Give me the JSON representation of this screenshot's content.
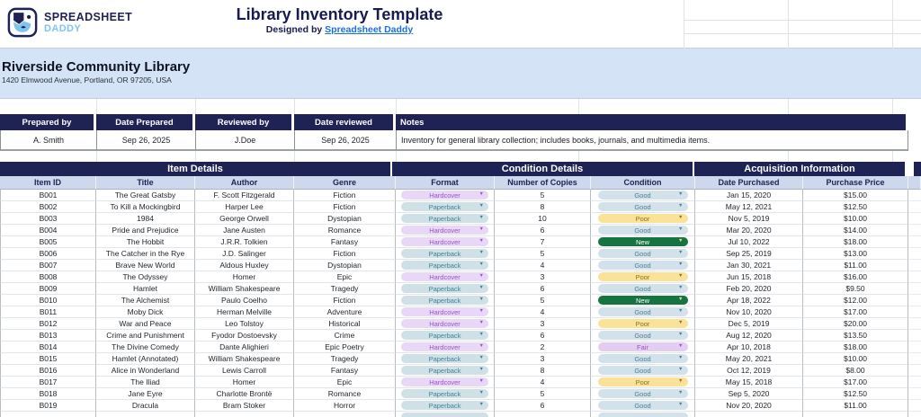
{
  "header": {
    "logo_line1": "SPREADSHEET",
    "logo_line2": "DADDY",
    "title": "Library Inventory Template",
    "subtitle_prefix": "Designed by",
    "subtitle_link": "Spreadsheet Daddy"
  },
  "library": {
    "name": "Riverside Community Library",
    "address": "1420 Elmwood Avenue, Portland, OR 97205, USA"
  },
  "prep": {
    "headers": [
      "Prepared by",
      "Date Prepared",
      "Reviewed by",
      "Date reviewed",
      "Notes"
    ],
    "values": [
      "A. Smith",
      "Sep 26, 2025",
      "J.Doe",
      "Sep 26, 2025",
      "Inventory for general library collection; includes books, journals, and multimedia items."
    ]
  },
  "main_table": {
    "groups": [
      {
        "label": "Item Details",
        "span": 4
      },
      {
        "label": "Condition Details",
        "span": 3
      },
      {
        "label": "Acquisition Information",
        "span": 2
      }
    ],
    "columns": [
      "Item ID",
      "Title",
      "Author",
      "Genre",
      "Format",
      "Number of Copies",
      "Condition",
      "Date Purchased",
      "Purchase Price"
    ],
    "rows": [
      {
        "id": "B001",
        "title": "The Great Gatsby",
        "author": "F. Scott Fitzgerald",
        "genre": "Fiction",
        "format": "Hardcover",
        "copies": "5",
        "condition": "Good",
        "date": "Jan 15, 2020",
        "price": "$15.00"
      },
      {
        "id": "B002",
        "title": "To Kill a Mockingbird",
        "author": "Harper Lee",
        "genre": "Fiction",
        "format": "Paperback",
        "copies": "8",
        "condition": "Good",
        "date": "May 12, 2021",
        "price": "$12.50"
      },
      {
        "id": "B003",
        "title": "1984",
        "author": "George Orwell",
        "genre": "Dystopian",
        "format": "Paperback",
        "copies": "10",
        "condition": "Poor",
        "date": "Nov 5, 2019",
        "price": "$10.00"
      },
      {
        "id": "B004",
        "title": "Pride and Prejudice",
        "author": "Jane Austen",
        "genre": "Romance",
        "format": "Hardcover",
        "copies": "6",
        "condition": "Good",
        "date": "Mar 20, 2020",
        "price": "$14.00"
      },
      {
        "id": "B005",
        "title": "The Hobbit",
        "author": "J.R.R. Tolkien",
        "genre": "Fantasy",
        "format": "Hardcover",
        "copies": "7",
        "condition": "New",
        "date": "Jul 10, 2022",
        "price": "$18.00"
      },
      {
        "id": "B006",
        "title": "The Catcher in the Rye",
        "author": "J.D. Salinger",
        "genre": "Fiction",
        "format": "Paperback",
        "copies": "5",
        "condition": "Good",
        "date": "Sep 25, 2019",
        "price": "$13.00"
      },
      {
        "id": "B007",
        "title": "Brave New World",
        "author": "Aldous Huxley",
        "genre": "Dystopian",
        "format": "Paperback",
        "copies": "4",
        "condition": "Good",
        "date": "Jan 30, 2021",
        "price": "$11.00"
      },
      {
        "id": "B008",
        "title": "The Odyssey",
        "author": "Homer",
        "genre": "Epic",
        "format": "Hardcover",
        "copies": "3",
        "condition": "Poor",
        "date": "Jun 15, 2018",
        "price": "$16.00"
      },
      {
        "id": "B009",
        "title": "Hamlet",
        "author": "William Shakespeare",
        "genre": "Tragedy",
        "format": "Paperback",
        "copies": "6",
        "condition": "Good",
        "date": "Feb 20, 2020",
        "price": "$9.50"
      },
      {
        "id": "B010",
        "title": "The Alchemist",
        "author": "Paulo Coelho",
        "genre": "Fiction",
        "format": "Paperback",
        "copies": "5",
        "condition": "New",
        "date": "Apr 18, 2022",
        "price": "$12.00"
      },
      {
        "id": "B011",
        "title": "Moby Dick",
        "author": "Herman Melville",
        "genre": "Adventure",
        "format": "Hardcover",
        "copies": "4",
        "condition": "Good",
        "date": "Nov 10, 2020",
        "price": "$17.00"
      },
      {
        "id": "B012",
        "title": "War and Peace",
        "author": "Leo Tolstoy",
        "genre": "Historical",
        "format": "Hardcover",
        "copies": "3",
        "condition": "Poor",
        "date": "Dec 5, 2019",
        "price": "$20.00"
      },
      {
        "id": "B013",
        "title": "Crime and Punishment",
        "author": "Fyodor Dostoevsky",
        "genre": "Crime",
        "format": "Paperback",
        "copies": "6",
        "condition": "Good",
        "date": "Aug 12, 2020",
        "price": "$13.50"
      },
      {
        "id": "B014",
        "title": "The Divine Comedy",
        "author": "Dante Alighieri",
        "genre": "Epic Poetry",
        "format": "Hardcover",
        "copies": "2",
        "condition": "Fair",
        "date": "Apr 10, 2018",
        "price": "$18.00"
      },
      {
        "id": "B015",
        "title": "Hamlet (Annotated)",
        "author": "William Shakespeare",
        "genre": "Tragedy",
        "format": "Paperback",
        "copies": "3",
        "condition": "Good",
        "date": "May 20, 2021",
        "price": "$10.00"
      },
      {
        "id": "B016",
        "title": "Alice in Wonderland",
        "author": "Lewis Carroll",
        "genre": "Fantasy",
        "format": "Paperback",
        "copies": "8",
        "condition": "Good",
        "date": "Oct 12, 2019",
        "price": "$8.00"
      },
      {
        "id": "B017",
        "title": "The Iliad",
        "author": "Homer",
        "genre": "Epic",
        "format": "Hardcover",
        "copies": "4",
        "condition": "Poor",
        "date": "May 15, 2018",
        "price": "$17.00"
      },
      {
        "id": "B018",
        "title": "Jane Eyre",
        "author": "Charlotte Brontë",
        "genre": "Romance",
        "format": "Paperback",
        "copies": "5",
        "condition": "Good",
        "date": "Sep 5, 2020",
        "price": "$12.50"
      },
      {
        "id": "B019",
        "title": "Dracula",
        "author": "Bram Stoker",
        "genre": "Horror",
        "format": "Paperback",
        "copies": "6",
        "condition": "Good",
        "date": "Nov 20, 2020",
        "price": "$11.00"
      }
    ]
  },
  "styles": {
    "navy": "#1e2254",
    "band_blue": "#d4e3f6",
    "column_header_blue": "#cdd8ec",
    "link_blue": "#1a6fdc",
    "daddy_blue": "#7fc3ee",
    "format_styles": {
      "Hardcover": {
        "bg": "#e8d7f6",
        "fg": "#9a55c9"
      },
      "Paperback": {
        "bg": "#cfe1e6",
        "fg": "#3f8496"
      }
    },
    "condition_styles": {
      "Good": {
        "bg": "#d3e2ea",
        "fg": "#4a7f96"
      },
      "Poor": {
        "bg": "#fae398",
        "fg": "#8a731f"
      },
      "New": {
        "bg": "#187342",
        "fg": "#ffffff",
        "arrow": "#d9e47a"
      },
      "Fair": {
        "bg": "#e4cdf3",
        "fg": "#9a55c9"
      }
    }
  }
}
